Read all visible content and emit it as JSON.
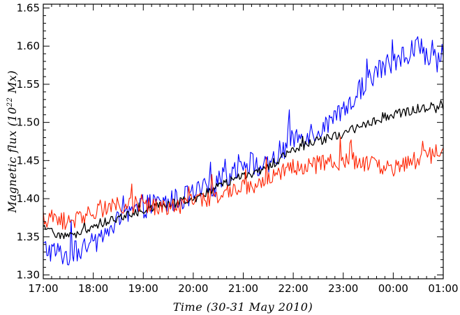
{
  "chart_data": {
    "type": "line",
    "title": "",
    "xlabel": "Time (30-31 May 2010)",
    "ylabel": "Magnetic flux (10²² Mx)",
    "ylabel_parts": {
      "prefix": "Magnetic flux (10",
      "exponent": "22",
      "suffix": " Mx)"
    },
    "x_ticks": [
      "17:00",
      "18:00",
      "19:00",
      "20:00",
      "21:00",
      "22:00",
      "23:00",
      "00:00",
      "01:00"
    ],
    "x_range_hours": [
      17,
      25
    ],
    "ylim": [
      1.295,
      1.655
    ],
    "y_ticks": [
      "1.30",
      "1.35",
      "1.40",
      "1.45",
      "1.50",
      "1.55",
      "1.60",
      "1.65"
    ],
    "grid": false,
    "series": [
      {
        "color": "#0000ff",
        "x": [
          "17:00",
          "17:30",
          "18:00",
          "18:30",
          "19:00",
          "19:30",
          "20:00",
          "20:30",
          "21:00",
          "21:30",
          "22:00",
          "22:30",
          "23:00",
          "23:30",
          "00:00",
          "00:30",
          "01:00"
        ],
        "values": [
          1.335,
          1.325,
          1.34,
          1.37,
          1.39,
          1.395,
          1.405,
          1.42,
          1.45,
          1.44,
          1.48,
          1.49,
          1.51,
          1.56,
          1.58,
          1.6,
          1.57
        ]
      },
      {
        "color": "#000000",
        "x": [
          "17:00",
          "17:30",
          "18:00",
          "18:30",
          "19:00",
          "19:30",
          "20:00",
          "20:30",
          "21:00",
          "21:30",
          "22:00",
          "22:30",
          "23:00",
          "23:30",
          "00:00",
          "00:30",
          "01:00"
        ],
        "values": [
          1.36,
          1.35,
          1.365,
          1.375,
          1.385,
          1.392,
          1.4,
          1.415,
          1.43,
          1.44,
          1.465,
          1.475,
          1.485,
          1.5,
          1.51,
          1.518,
          1.518
        ]
      },
      {
        "color": "#ff2200",
        "x": [
          "17:00",
          "17:30",
          "18:00",
          "18:30",
          "19:00",
          "19:30",
          "20:00",
          "20:30",
          "21:00",
          "21:30",
          "22:00",
          "22:30",
          "23:00",
          "23:30",
          "00:00",
          "00:30",
          "01:00"
        ],
        "values": [
          1.375,
          1.37,
          1.385,
          1.39,
          1.395,
          1.385,
          1.395,
          1.405,
          1.415,
          1.425,
          1.44,
          1.445,
          1.45,
          1.445,
          1.44,
          1.45,
          1.465
        ]
      }
    ]
  }
}
